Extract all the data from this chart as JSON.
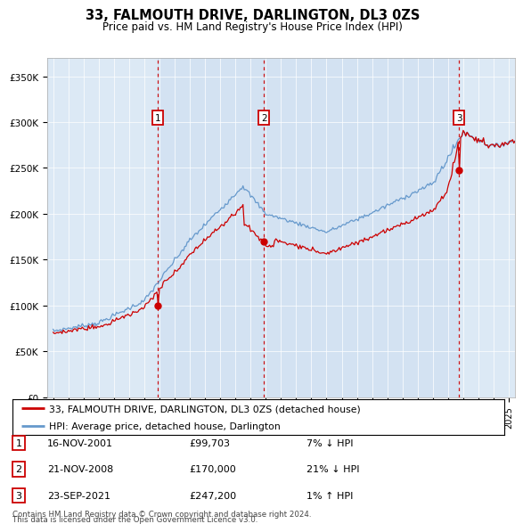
{
  "title": "33, FALMOUTH DRIVE, DARLINGTON, DL3 0ZS",
  "subtitle": "Price paid vs. HM Land Registry's House Price Index (HPI)",
  "footer1": "Contains HM Land Registry data © Crown copyright and database right 2024.",
  "footer2": "This data is licensed under the Open Government Licence v3.0.",
  "legend_line1": "33, FALMOUTH DRIVE, DARLINGTON, DL3 0ZS (detached house)",
  "legend_line2": "HPI: Average price, detached house, Darlington",
  "transactions": [
    {
      "num": 1,
      "date": "16-NOV-2001",
      "price": "£99,703",
      "pct": "7% ↓ HPI",
      "year": 2001.88
    },
    {
      "num": 2,
      "date": "21-NOV-2008",
      "price": "£170,000",
      "pct": "21% ↓ HPI",
      "year": 2008.88
    },
    {
      "num": 3,
      "date": "23-SEP-2021",
      "price": "£247,200",
      "pct": "1% ↑ HPI",
      "year": 2021.72
    }
  ],
  "sale_prices": [
    99703,
    170000,
    247200
  ],
  "sale_years": [
    2001.88,
    2008.88,
    2021.72
  ],
  "ylim": [
    0,
    370000
  ],
  "yticks": [
    0,
    50000,
    100000,
    150000,
    200000,
    250000,
    300000,
    350000
  ],
  "ytick_labels": [
    "£0",
    "£50K",
    "£100K",
    "£150K",
    "£200K",
    "£250K",
    "£300K",
    "£350K"
  ],
  "xlim_start": 1994.6,
  "xlim_end": 2025.4,
  "bg_color": "#dce9f5",
  "red_line_color": "#cc0000",
  "blue_line_color": "#6699cc",
  "vline_color": "#cc0000",
  "box_color": "#cc0000",
  "shade_color": "#ccddf0"
}
